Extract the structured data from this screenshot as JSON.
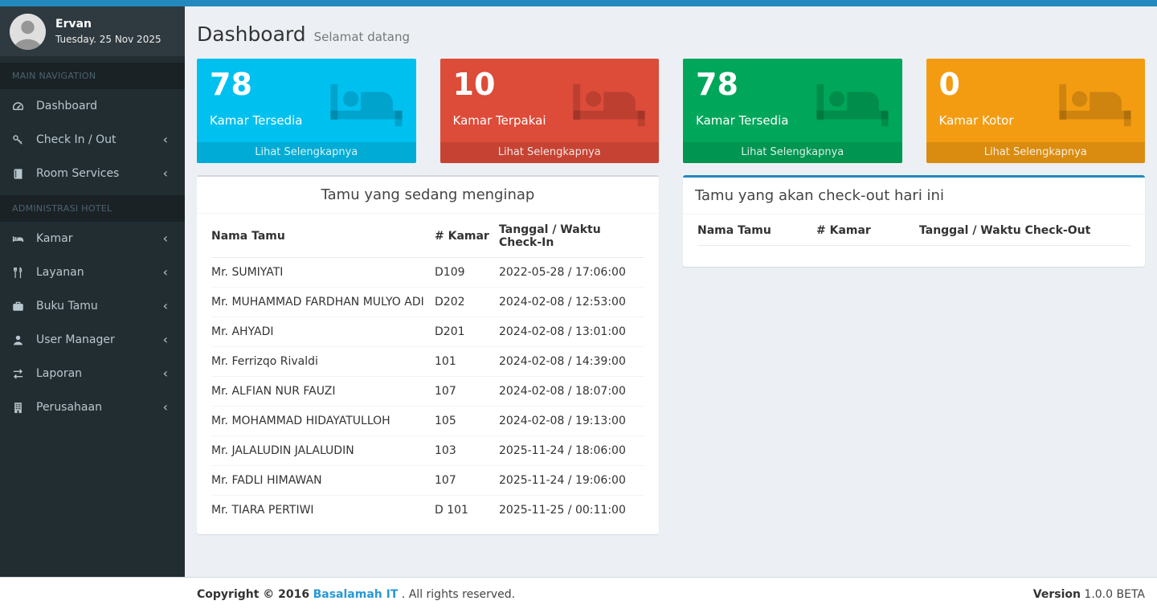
{
  "navbar": {
    "color": "#2389be"
  },
  "sidebar": {
    "user": {
      "name": "Ervan",
      "date": "Tuesday. 25 Nov 2025"
    },
    "sections": [
      {
        "header": "MAIN NAVIGATION",
        "items": [
          {
            "id": "dashboard",
            "label": "Dashboard",
            "icon": "dashboard-icon",
            "has_submenu": false
          },
          {
            "id": "check-in-out",
            "label": "Check In / Out",
            "icon": "key-icon",
            "has_submenu": true
          },
          {
            "id": "room-services",
            "label": "Room Services",
            "icon": "book-icon",
            "has_submenu": true
          }
        ]
      },
      {
        "header": "ADMINISTRASI HOTEL",
        "items": [
          {
            "id": "kamar",
            "label": "Kamar",
            "icon": "bed-icon",
            "has_submenu": true
          },
          {
            "id": "layanan",
            "label": "Layanan",
            "icon": "cutlery-icon",
            "has_submenu": true
          },
          {
            "id": "buku-tamu",
            "label": "Buku Tamu",
            "icon": "briefcase-icon",
            "has_submenu": true
          },
          {
            "id": "user-manager",
            "label": "User Manager",
            "icon": "user-icon",
            "has_submenu": true
          },
          {
            "id": "laporan",
            "label": "Laporan",
            "icon": "exchange-icon",
            "has_submenu": true
          },
          {
            "id": "perusahaan",
            "label": "Perusahaan",
            "icon": "building-icon",
            "has_submenu": true
          }
        ]
      }
    ]
  },
  "header": {
    "title": "Dashboard",
    "subtitle": "Selamat datang"
  },
  "stat_boxes": [
    {
      "id": "kamar-tersedia-aqua",
      "value": "78",
      "label": "Kamar Tersedia",
      "footer": "Lihat Selengkapnya",
      "color": "#00c0ef"
    },
    {
      "id": "kamar-terpakai",
      "value": "10",
      "label": "Kamar Terpakai",
      "footer": "Lihat Selengkapnya",
      "color": "#dd4b39"
    },
    {
      "id": "kamar-tersedia-green",
      "value": "78",
      "label": "Kamar Tersedia",
      "footer": "Lihat Selengkapnya",
      "color": "#00a65a"
    },
    {
      "id": "kamar-kotor",
      "value": "0",
      "label": "Kamar Kotor",
      "footer": "Lihat Selengkapnya",
      "color": "#f39c12"
    }
  ],
  "checkin_panel": {
    "title": "Tamu yang sedang menginap",
    "columns": [
      "Nama Tamu",
      "# Kamar",
      "Tanggal / Waktu Check-In"
    ],
    "rows": [
      [
        "Mr. SUMIYATI",
        "D109",
        "2022-05-28 / 17:06:00"
      ],
      [
        "Mr. MUHAMMAD FARDHAN MULYO ADI",
        "D202",
        "2024-02-08 / 12:53:00"
      ],
      [
        "Mr. AHYADI",
        "D201",
        "2024-02-08 / 13:01:00"
      ],
      [
        "Mr. Ferrizqo Rivaldi",
        "101",
        "2024-02-08 / 14:39:00"
      ],
      [
        "Mr. ALFIAN NUR FAUZI",
        "107",
        "2024-02-08 / 18:07:00"
      ],
      [
        "Mr. MOHAMMAD HIDAYATULLOH",
        "105",
        "2024-02-08 / 19:13:00"
      ],
      [
        "Mr. JALALUDIN JALALUDIN",
        "103",
        "2025-11-24 / 18:06:00"
      ],
      [
        "Mr. FADLI HIMAWAN",
        "107",
        "2025-11-24 / 19:06:00"
      ],
      [
        "Mr. TIARA PERTIWI",
        "D 101",
        "2025-11-25 / 00:11:00"
      ]
    ]
  },
  "checkout_panel": {
    "title": "Tamu yang akan check-out hari ini",
    "columns": [
      "Nama Tamu",
      "# Kamar",
      "Tanggal / Waktu Check-Out"
    ],
    "rows": []
  },
  "footer": {
    "copyright_bold": "Copyright © 2016",
    "link_label": "Basalamah IT",
    "rights_text": " . All rights reserved.",
    "version_label": "Version",
    "version_value": "1.0.0 BETA"
  }
}
